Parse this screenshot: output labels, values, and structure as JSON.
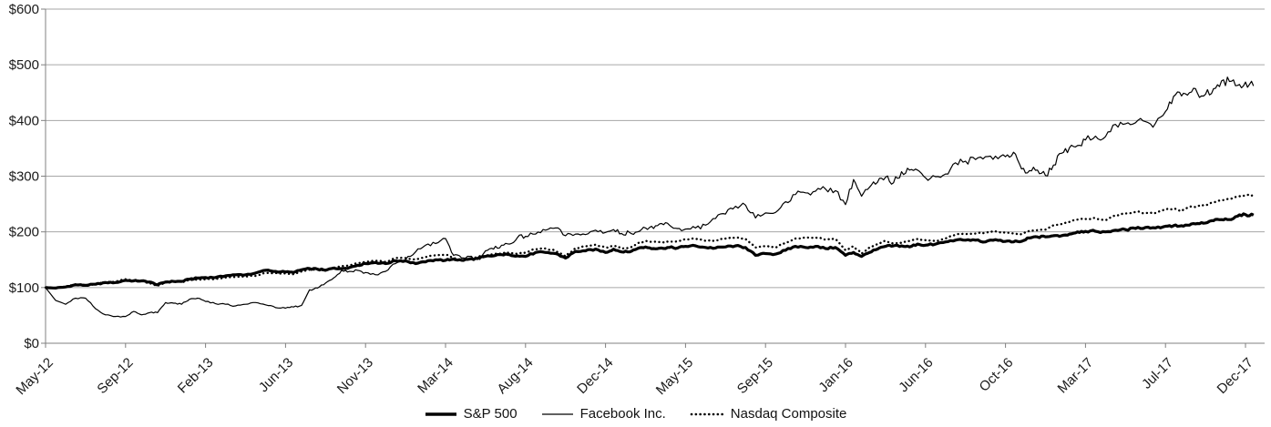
{
  "chart_data": {
    "type": "line",
    "title": "",
    "xlabel": "",
    "ylabel": "",
    "ylim": [
      0,
      600
    ],
    "y_tick_values": [
      0,
      100,
      200,
      300,
      400,
      500,
      600
    ],
    "y_tick_labels": [
      "$0",
      "$100",
      "$200",
      "$300",
      "$400",
      "$500",
      "$600"
    ],
    "x_tick_labels": [
      "May-12",
      "Sep-12",
      "Feb-13",
      "Jun-13",
      "Nov-13",
      "Mar-14",
      "Aug-14",
      "Dec-14",
      "May-15",
      "Sep-15",
      "Jan-16",
      "Jun-16",
      "Oct-16",
      "Mar-17",
      "Jul-17",
      "Dec-17"
    ],
    "x_tick_months": [
      0,
      4,
      9,
      13,
      18,
      22,
      27,
      31,
      36,
      40,
      44,
      49,
      53,
      58,
      62,
      67
    ],
    "x_start_label": "May-12",
    "x_end_label": "Dec-17",
    "sample_interval_months": 0.5,
    "index_base_value": 100,
    "grid": "horizontal",
    "legend_position": "bottom-center",
    "colors": {
      "series": "#000000",
      "gridline": "#a6a6a6",
      "axis": "#808080",
      "text": "#1a1a1a"
    },
    "series": [
      {
        "name": "S&P 500",
        "line_style": "solid-thick",
        "values": [
          100,
          99,
          101,
          105,
          104,
          106,
          109,
          109,
          113,
          112,
          112,
          110,
          105,
          110,
          111,
          111,
          115,
          117,
          118,
          118,
          121,
          123,
          123,
          126,
          131,
          129,
          128,
          127,
          132,
          134,
          133,
          131,
          135,
          134,
          136,
          140,
          143,
          145,
          143,
          148,
          148,
          143,
          146,
          150,
          149,
          151,
          149,
          151,
          152,
          156,
          157,
          159,
          159,
          157,
          156,
          163,
          163,
          161,
          153,
          165,
          166,
          169,
          163,
          169,
          164,
          164,
          170,
          173,
          170,
          171,
          172,
          171,
          174,
          175,
          172,
          171,
          173,
          175,
          172,
          158,
          161,
          160,
          167,
          174,
          172,
          174,
          170,
          172,
          158,
          163,
          156,
          163,
          169,
          174,
          175,
          175,
          173,
          178,
          176,
          178,
          182,
          185,
          185,
          185,
          182,
          186,
          183,
          182,
          183,
          189,
          191,
          191,
          193,
          193,
          196,
          200,
          201,
          201,
          200,
          203,
          204,
          206,
          208,
          207,
          210,
          211,
          211,
          212,
          215,
          216,
          220,
          222,
          222,
          228,
          231,
          230
        ]
      },
      {
        "name": "Facebook Inc.",
        "line_style": "solid-thin",
        "values": [
          100,
          77,
          70,
          81,
          81,
          62,
          51,
          48,
          48,
          57,
          51,
          55,
          55,
          73,
          72,
          70,
          79,
          81,
          75,
          71,
          70,
          67,
          70,
          73,
          69,
          64,
          63,
          65,
          68,
          96,
          99,
          108,
          117,
          131,
          129,
          131,
          127,
          123,
          129,
          143,
          150,
          164,
          176,
          179,
          188,
          158,
          153,
          156,
          152,
          166,
          169,
          176,
          178,
          190,
          192,
          196,
          203,
          207,
          193,
          196,
          195,
          203,
          199,
          204,
          197,
          199,
          200,
          207,
          206,
          215,
          212,
          206,
          205,
          207,
          212,
          224,
          232,
          246,
          248,
          225,
          234,
          235,
          254,
          267,
          270,
          273,
          277,
          274,
          249,
          294,
          264,
          280,
          289,
          298,
          288,
          308,
          311,
          311,
          297,
          299,
          304,
          324,
          327,
          330,
          335,
          336,
          335,
          343,
          313,
          310,
          311,
          301,
          320,
          341,
          351,
          355,
          365,
          372,
          371,
          393,
          394,
          396,
          398,
          395,
          416,
          443,
          444,
          450,
          449,
          447,
          457,
          471,
          470,
          463,
          469,
          462
        ]
      },
      {
        "name": "Nasdaq Composite",
        "line_style": "dotted",
        "values": [
          100,
          99,
          102,
          106,
          105,
          106,
          110,
          111,
          115,
          113,
          112,
          108,
          103,
          109,
          110,
          110,
          113,
          114,
          115,
          115,
          118,
          119,
          120,
          121,
          126,
          126,
          125,
          124,
          129,
          132,
          132,
          131,
          135,
          138,
          140,
          143,
          146,
          148,
          146,
          153,
          153,
          150,
          155,
          158,
          159,
          154,
          148,
          151,
          151,
          156,
          160,
          162,
          162,
          161,
          163,
          169,
          170,
          166,
          156,
          171,
          174,
          177,
          172,
          175,
          170,
          172,
          179,
          184,
          182,
          182,
          183,
          183,
          187,
          188,
          184,
          185,
          188,
          190,
          187,
          172,
          174,
          172,
          181,
          188,
          189,
          190,
          186,
          187,
          167,
          174,
          161,
          172,
          178,
          184,
          179,
          180,
          184,
          187,
          185,
          183,
          188,
          195,
          196,
          197,
          199,
          201,
          198,
          197,
          196,
          202,
          203,
          204,
          212,
          214,
          218,
          222,
          223,
          225,
          221,
          230,
          233,
          236,
          234,
          234,
          241,
          242,
          237,
          245,
          246,
          248,
          253,
          257,
          260,
          263,
          266,
          266
        ]
      }
    ]
  },
  "legend": {
    "items": [
      {
        "label": "S&P 500"
      },
      {
        "label": "Facebook Inc."
      },
      {
        "label": "Nasdaq Composite"
      }
    ]
  }
}
